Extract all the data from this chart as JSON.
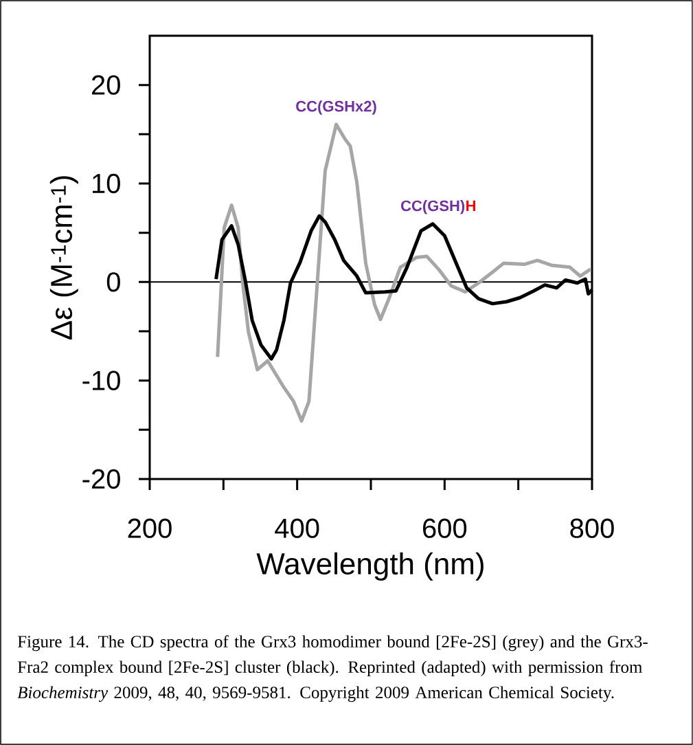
{
  "chart_data": {
    "type": "line",
    "xlabel": "Wavelength (nm)",
    "ylabel": "Δε (M$^{-1}$cm$^{-1}$)",
    "xlim": [
      200,
      800
    ],
    "ylim": [
      -20,
      25
    ],
    "xticks": [
      200,
      {
        "value": 300,
        "label": null
      },
      400,
      {
        "value": 500,
        "label": null
      },
      600,
      {
        "value": 700,
        "label": null
      },
      800
    ],
    "yticks": [
      -20,
      {
        "value": -15,
        "label": null
      },
      -10,
      {
        "value": -5,
        "label": null
      },
      0,
      {
        "value": 5,
        "label": null
      },
      10,
      {
        "value": 15,
        "label": null
      },
      20
    ],
    "grid": false,
    "marker": "none",
    "line_style": "solid",
    "ref_lines": [
      {
        "axis": "y",
        "value": 0,
        "color": "#000000"
      }
    ],
    "series": [
      {
        "color": "#a6a6a6",
        "x": [
          292,
          297,
          301,
          311,
          320,
          326,
          334,
          346,
          360,
          382,
          395,
          406,
          416,
          427,
          438,
          453,
          465,
          472,
          481,
          493,
          505,
          513,
          525,
          540,
          562,
          576,
          593,
          609,
          628,
          646,
          665,
          680,
          708,
          726,
          745,
          770,
          784,
          798
        ],
        "values": [
          -7.6,
          -0.4,
          5.5,
          7.8,
          5.5,
          0,
          -5.1,
          -8.9,
          -8.0,
          -10.7,
          -12.1,
          -14.1,
          -12.1,
          -0.4,
          11.3,
          16.0,
          14.5,
          13.8,
          10.1,
          1.9,
          -2.3,
          -3.8,
          -1.6,
          1.5,
          2.5,
          2.6,
          1.2,
          -0.4,
          -1.0,
          -0.1,
          1.0,
          1.9,
          1.8,
          2.2,
          1.7,
          1.5,
          0.6,
          1.3
        ]
      },
      {
        "color": "#000000",
        "x": [
          290,
          298,
          311,
          320,
          330,
          339,
          351,
          365,
          372,
          382,
          391,
          404,
          419,
          430,
          438,
          451,
          463,
          481,
          493,
          519,
          534,
          549,
          568,
          584,
          600,
          618,
          630,
          646,
          665,
          684,
          702,
          721,
          736,
          752,
          764,
          780,
          791,
          795,
          800
        ],
        "values": [
          0.3,
          4.3,
          5.7,
          3.8,
          0,
          -3.9,
          -6.4,
          -7.8,
          -6.9,
          -3.9,
          -0.1,
          2.0,
          5.2,
          6.7,
          6.1,
          4.3,
          2.2,
          0.6,
          -1.1,
          -1.0,
          -0.9,
          1.5,
          5.2,
          5.9,
          4.7,
          1.5,
          -0.6,
          -1.7,
          -2.2,
          -2.0,
          -1.6,
          -0.9,
          -0.3,
          -0.6,
          0.2,
          -0.1,
          0.3,
          -1.2,
          -0.8
        ]
      }
    ],
    "annotations": [
      {
        "text": "CC(GSHx2)",
        "x": 453,
        "y": 16.0
      },
      {
        "text": "CC(GSH)",
        "x": 584,
        "y": 5.9
      },
      "H",
      "Figure 14. The CD spectra of the Grx3 homodimer bound [2Fe-2S] (grey) and the Grx3-Fra2 complex bound [2Fe-2S] cluster (black). Reprinted (adapted) with permission from *Biochemistry* 2009, 48, 40, 9569-9581. Copyright 2009 American Chemical Society."
    ]
  }
}
